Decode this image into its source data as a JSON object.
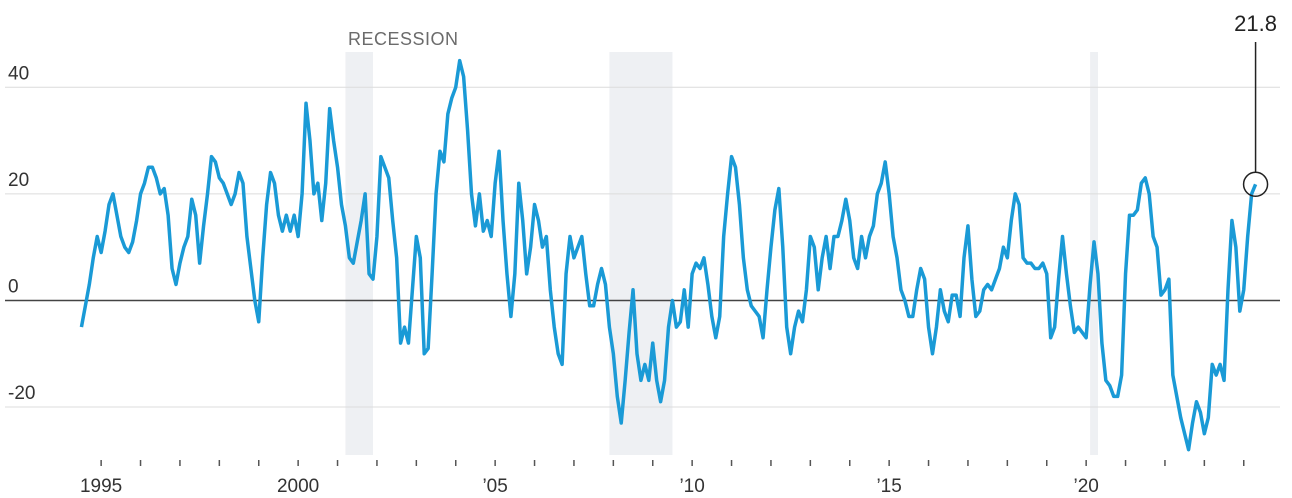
{
  "chart_data": {
    "type": "line",
    "color": "#1a9ad6",
    "recession_color": "#eef0f3",
    "recession_label": "RECESSION",
    "recessions": [
      [
        2001.2,
        2001.9
      ],
      [
        2007.9,
        2009.5
      ],
      [
        2020.1,
        2020.3
      ]
    ],
    "annotation": "21.8",
    "xlim": [
      1992.56,
      2024.92
    ],
    "ylim": [
      -29,
      47
    ],
    "yticks": [
      -20,
      0,
      20,
      40
    ],
    "grid": true,
    "xticks": [
      1995,
      2000,
      {
        "value": 2005,
        "label": "’05"
      },
      {
        "value": 2010,
        "label": "’10"
      },
      {
        "value": 2015,
        "label": "’15"
      },
      {
        "value": 2020,
        "label": "’20"
      }
    ],
    "xminorticks": [
      1996,
      1997,
      1998,
      1999,
      2001,
      2002,
      2003,
      2004,
      2006,
      2007,
      2008,
      2009,
      2011,
      2012,
      2013,
      2014,
      2016,
      2017,
      2018,
      2019,
      2021,
      2022,
      2023,
      2024
    ],
    "x": [
      1994.5,
      1994.6,
      1994.7,
      1994.8,
      1994.9,
      1995.0,
      1995.1,
      1995.2,
      1995.3,
      1995.4,
      1995.5,
      1995.6,
      1995.7,
      1995.8,
      1995.9,
      1996.0,
      1996.1,
      1996.2,
      1996.3,
      1996.4,
      1996.5,
      1996.6,
      1996.7,
      1996.8,
      1996.9,
      1997.0,
      1997.1,
      1997.2,
      1997.3,
      1997.4,
      1997.5,
      1997.6,
      1997.7,
      1997.8,
      1997.9,
      1998.0,
      1998.1,
      1998.2,
      1998.3,
      1998.4,
      1998.5,
      1998.6,
      1998.7,
      1998.8,
      1998.9,
      1999.0,
      1999.1,
      1999.2,
      1999.3,
      1999.4,
      1999.5,
      1999.6,
      1999.7,
      1999.8,
      1999.9,
      2000.0,
      2000.1,
      2000.2,
      2000.3,
      2000.4,
      2000.5,
      2000.6,
      2000.7,
      2000.8,
      2000.9,
      2001.0,
      2001.1,
      2001.2,
      2001.3,
      2001.4,
      2001.5,
      2001.6,
      2001.7,
      2001.8,
      2001.9,
      2002.0,
      2002.1,
      2002.2,
      2002.3,
      2002.4,
      2002.5,
      2002.6,
      2002.7,
      2002.8,
      2002.9,
      2003.0,
      2003.1,
      2003.2,
      2003.3,
      2003.4,
      2003.5,
      2003.6,
      2003.7,
      2003.8,
      2003.9,
      2004.0,
      2004.1,
      2004.2,
      2004.3,
      2004.4,
      2004.5,
      2004.6,
      2004.7,
      2004.8,
      2004.9,
      2005.0,
      2005.1,
      2005.2,
      2005.3,
      2005.4,
      2005.5,
      2005.6,
      2005.7,
      2005.8,
      2005.9,
      2006.0,
      2006.1,
      2006.2,
      2006.3,
      2006.4,
      2006.5,
      2006.6,
      2006.7,
      2006.8,
      2006.9,
      2007.0,
      2007.1,
      2007.2,
      2007.3,
      2007.4,
      2007.5,
      2007.6,
      2007.7,
      2007.8,
      2007.9,
      2008.0,
      2008.1,
      2008.2,
      2008.3,
      2008.4,
      2008.5,
      2008.6,
      2008.7,
      2008.8,
      2008.9,
      2009.0,
      2009.1,
      2009.2,
      2009.3,
      2009.4,
      2009.5,
      2009.6,
      2009.7,
      2009.8,
      2009.9,
      2010.0,
      2010.1,
      2010.2,
      2010.3,
      2010.4,
      2010.5,
      2010.6,
      2010.7,
      2010.8,
      2010.9,
      2011.0,
      2011.1,
      2011.2,
      2011.3,
      2011.4,
      2011.5,
      2011.6,
      2011.7,
      2011.8,
      2011.9,
      2012.0,
      2012.1,
      2012.2,
      2012.3,
      2012.4,
      2012.5,
      2012.6,
      2012.7,
      2012.8,
      2012.9,
      2013.0,
      2013.1,
      2013.2,
      2013.3,
      2013.4,
      2013.5,
      2013.6,
      2013.7,
      2013.8,
      2013.9,
      2014.0,
      2014.1,
      2014.2,
      2014.3,
      2014.4,
      2014.5,
      2014.6,
      2014.7,
      2014.8,
      2014.9,
      2015.0,
      2015.1,
      2015.2,
      2015.3,
      2015.4,
      2015.5,
      2015.6,
      2015.7,
      2015.8,
      2015.9,
      2016.0,
      2016.1,
      2016.2,
      2016.3,
      2016.4,
      2016.5,
      2016.6,
      2016.7,
      2016.8,
      2016.9,
      2017.0,
      2017.1,
      2017.2,
      2017.3,
      2017.4,
      2017.5,
      2017.6,
      2017.7,
      2017.8,
      2017.9,
      2018.0,
      2018.1,
      2018.2,
      2018.3,
      2018.4,
      2018.5,
      2018.6,
      2018.7,
      2018.8,
      2018.9,
      2019.0,
      2019.1,
      2019.2,
      2019.3,
      2019.4,
      2019.5,
      2019.6,
      2019.7,
      2019.8,
      2019.9,
      2020.0,
      2020.1,
      2020.2,
      2020.3,
      2020.4,
      2020.5,
      2020.6,
      2020.7,
      2020.8,
      2020.9,
      2021.0,
      2021.1,
      2021.2,
      2021.3,
      2021.4,
      2021.5,
      2021.6,
      2021.7,
      2021.8,
      2021.9,
      2022.0,
      2022.1,
      2022.2,
      2022.3,
      2022.4,
      2022.5,
      2022.6,
      2022.7,
      2022.8,
      2022.9,
      2023.0,
      2023.1,
      2023.2,
      2023.3,
      2023.4,
      2023.5,
      2023.6,
      2023.7,
      2023.8,
      2023.9,
      2024.0,
      2024.1,
      2024.2,
      2024.3
    ],
    "values": [
      -5,
      -1,
      3,
      8,
      12,
      9,
      13,
      18,
      20,
      16,
      12,
      10,
      9,
      11,
      15,
      20,
      22,
      25,
      25,
      23,
      20,
      21,
      16,
      6,
      3,
      7,
      10,
      12,
      19,
      16,
      7,
      14,
      20,
      27,
      26,
      23,
      22,
      20,
      18,
      20,
      24,
      22,
      12,
      6,
      0,
      -4,
      8,
      18,
      24,
      22,
      16,
      13,
      16,
      13,
      16,
      12,
      20,
      37,
      30,
      20,
      22,
      15,
      22,
      36,
      30,
      25,
      18,
      14,
      8,
      7,
      11,
      15,
      20,
      5,
      4,
      12,
      27,
      25,
      23,
      15,
      8,
      -8,
      -5,
      -8,
      2,
      12,
      8,
      -10,
      -9,
      5,
      20,
      28,
      26,
      35,
      38,
      40,
      45,
      42,
      32,
      20,
      14,
      20,
      13,
      15,
      12,
      22,
      28,
      15,
      5,
      -3,
      5,
      22,
      15,
      5,
      10,
      18,
      15,
      10,
      12,
      2,
      -5,
      -10,
      -12,
      5,
      12,
      8,
      10,
      12,
      5,
      -1,
      -1,
      3,
      6,
      3,
      -5,
      -10,
      -18,
      -23,
      -15,
      -6,
      2,
      -10,
      -15,
      -12,
      -15,
      -8,
      -15,
      -19,
      -15,
      -5,
      0,
      -5,
      -4,
      2,
      -5,
      5,
      7,
      6,
      8,
      3,
      -3,
      -7,
      -3,
      12,
      20,
      27,
      25,
      18,
      8,
      2,
      -1,
      -2,
      -3,
      -7,
      2,
      10,
      17,
      21,
      10,
      -5,
      -10,
      -5,
      -2,
      -4,
      2,
      12,
      10,
      2,
      8,
      12,
      6,
      12,
      12,
      15,
      19,
      15,
      8,
      6,
      12,
      8,
      12,
      14,
      20,
      22,
      26,
      20,
      12,
      8,
      2,
      0,
      -3,
      -3,
      2,
      6,
      4,
      -5,
      -10,
      -5,
      2,
      -2,
      -4,
      1,
      1,
      -3,
      8,
      14,
      4,
      -3,
      -2,
      2,
      3,
      2,
      4,
      6,
      10,
      8,
      15,
      20,
      18,
      8,
      7,
      7,
      6,
      6,
      7,
      5,
      -7,
      -5,
      4,
      12,
      5,
      -1,
      -6,
      -5,
      -6,
      -7,
      3,
      11,
      5,
      -8,
      -15,
      -16,
      -18,
      -18,
      -14,
      5,
      16,
      16,
      17,
      22,
      23,
      20,
      12,
      10,
      1,
      2,
      4,
      -14,
      -18,
      -22,
      -25,
      -28,
      -23,
      -19,
      -21,
      -25,
      -22,
      -12,
      -14,
      -12,
      -15,
      2,
      15,
      10,
      -2,
      2,
      12,
      20,
      21.8
    ]
  }
}
